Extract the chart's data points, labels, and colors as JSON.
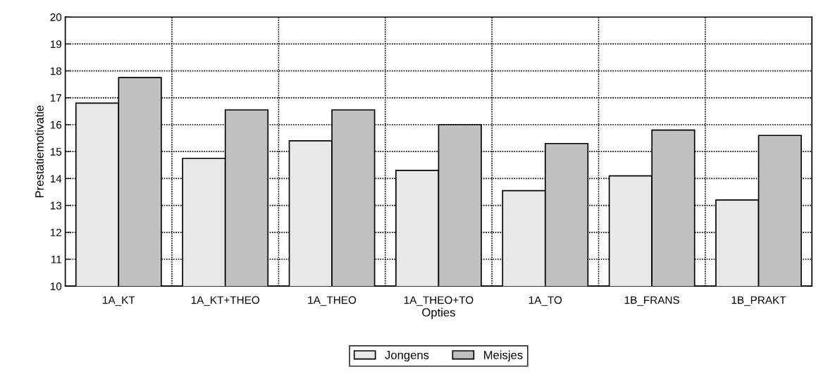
{
  "chart_data": {
    "type": "bar",
    "xlabel": "Opties",
    "ylabel": "Prestatiemotivatie",
    "categories": [
      "1A_KT",
      "1A_KT+THEO",
      "1A_THEO",
      "1A_THEO+TO",
      "1A_TO",
      "1B_FRANS",
      "1B_PRAKT"
    ],
    "series": [
      {
        "name": "Jongens",
        "color": "#e8e8e8",
        "values": [
          16.8,
          14.75,
          15.4,
          14.3,
          13.55,
          14.1,
          13.2
        ]
      },
      {
        "name": "Meisjes",
        "color": "#c0c0c0",
        "values": [
          17.75,
          16.55,
          16.55,
          16.0,
          15.3,
          15.8,
          15.6
        ]
      }
    ],
    "ylim": [
      10,
      20
    ],
    "yticks": [
      10,
      11,
      12,
      13,
      14,
      15,
      16,
      17,
      18,
      19,
      20
    ],
    "grid": true,
    "legend": "bottom"
  }
}
